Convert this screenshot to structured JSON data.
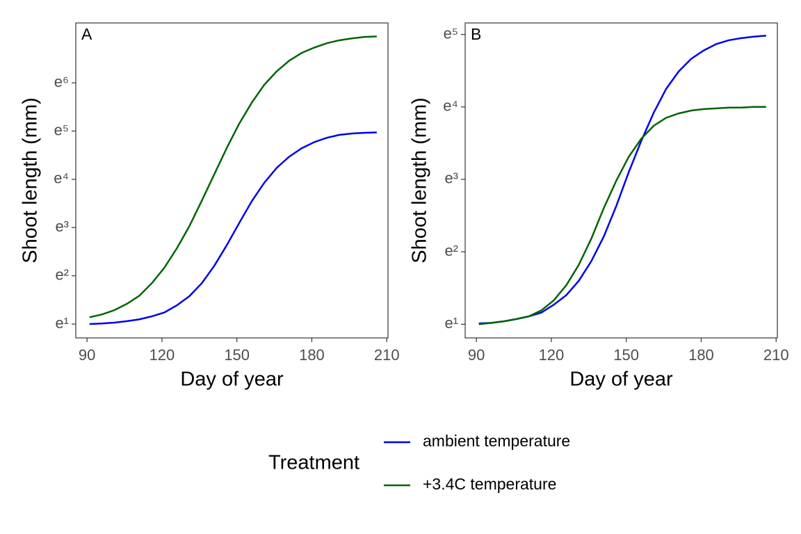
{
  "chart_data": [
    {
      "type": "line",
      "panel_label": "A",
      "xlabel": "Day of year",
      "ylabel": "Shoot length (mm)",
      "log_y": true,
      "x": [
        91,
        96,
        101,
        106,
        111,
        116,
        121,
        126,
        131,
        136,
        141,
        146,
        151,
        156,
        161,
        166,
        171,
        176,
        181,
        186,
        191,
        196,
        201,
        206
      ],
      "xlim": [
        85.5,
        210.5
      ],
      "xticks": [
        90,
        120,
        150,
        180,
        210
      ],
      "ylim": [
        2.04,
        1394
      ],
      "yticks": [
        {
          "value": 2.718,
          "label": "e¹"
        },
        {
          "value": 7.389,
          "label": "e²"
        },
        {
          "value": 20.09,
          "label": "e³"
        },
        {
          "value": 54.6,
          "label": "e⁴"
        },
        {
          "value": 148.4,
          "label": "e⁵"
        },
        {
          "value": 403.4,
          "label": "e⁶"
        }
      ],
      "series": [
        {
          "name": "ambient temperature",
          "color": "#0000ee",
          "values": [
            2.72,
            2.75,
            2.8,
            2.89,
            3.0,
            3.19,
            3.46,
            4.01,
            4.85,
            6.36,
            9.12,
            14.0,
            22.2,
            34.8,
            50.9,
            69.4,
            87.4,
            104,
            118,
            129,
            137,
            141,
            143,
            144
          ]
        },
        {
          "name": "+3.4C temperature",
          "color": "#006400",
          "values": [
            3.13,
            3.32,
            3.63,
            4.14,
            4.9,
            6.36,
            8.76,
            13.1,
            20.7,
            35.2,
            60.9,
            105,
            174,
            268,
            388,
            513,
            639,
            750,
            837,
            916,
            973,
            1012,
            1043,
            1054
          ]
        }
      ]
    },
    {
      "type": "line",
      "panel_label": "B",
      "xlabel": "Day of year",
      "ylabel": "Shoot length (mm)",
      "log_y": true,
      "x": [
        91,
        96,
        101,
        106,
        111,
        116,
        121,
        126,
        131,
        136,
        141,
        146,
        151,
        156,
        161,
        166,
        171,
        176,
        181,
        186,
        191,
        196,
        201,
        206
      ],
      "xlim": [
        85.5,
        210.5
      ],
      "xticks": [
        90,
        120,
        150,
        180,
        210
      ],
      "ylim": [
        2.25,
        174
      ],
      "yticks": [
        {
          "value": 2.718,
          "label": "e¹"
        },
        {
          "value": 7.389,
          "label": "e²"
        },
        {
          "value": 20.09,
          "label": "e³"
        },
        {
          "value": 54.6,
          "label": "e⁴"
        },
        {
          "value": 148.4,
          "label": "e⁵"
        }
      ],
      "series": [
        {
          "color": "#0000ee",
          "values": [
            2.75,
            2.77,
            2.83,
            2.92,
            3.03,
            3.19,
            3.56,
            4.06,
            4.95,
            6.49,
            9.12,
            13.9,
            22.2,
            34.1,
            50.4,
            70.1,
            89.1,
            106,
            119,
            130,
            137,
            141,
            144,
            146
          ]
        },
        {
          "color": "#006400",
          "values": [
            2.72,
            2.77,
            2.83,
            2.92,
            3.03,
            3.29,
            3.78,
            4.66,
            6.17,
            8.85,
            13.5,
            19.7,
            27.4,
            35.2,
            42.1,
            47.0,
            49.9,
            51.9,
            53.0,
            53.5,
            54.1,
            54.1,
            54.6,
            54.6
          ]
        }
      ]
    }
  ],
  "legend": {
    "title": "Treatment",
    "position": "bottom"
  }
}
